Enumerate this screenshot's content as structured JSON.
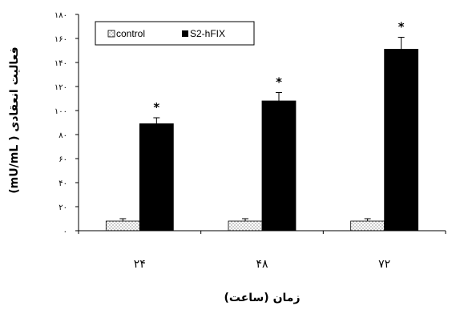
{
  "chart_data": {
    "type": "bar",
    "categories": [
      "۲۴",
      "۴۸",
      "۷۲"
    ],
    "series": [
      {
        "name": "control",
        "values": [
          8,
          8,
          8
        ],
        "errors": [
          2,
          2,
          2
        ],
        "color": "#ffffff",
        "pattern": "dotted"
      },
      {
        "name": "S2-hFIX",
        "values": [
          89,
          108,
          151
        ],
        "errors": [
          5,
          7,
          10
        ],
        "color": "#000000"
      }
    ],
    "annotations": [
      "*",
      "*",
      "*"
    ],
    "xlabel": "(ساعت) زمان",
    "ylabel": "(mU/mL ) فعالیت انعقادی",
    "ylim": [
      0,
      180
    ],
    "yticks": [
      0,
      20,
      40,
      60,
      80,
      100,
      120,
      140,
      160,
      180
    ],
    "ytick_labels": [
      "۰",
      "۲۰",
      "۴۰",
      "۶۰",
      "۸۰",
      "۱۰۰",
      "۱۲۰",
      "۱۴۰",
      "۱۶۰",
      "۱۸۰"
    ],
    "grid": false,
    "legend": "top-left"
  }
}
